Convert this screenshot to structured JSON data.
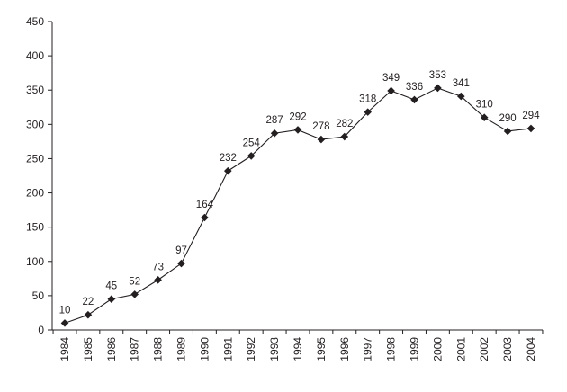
{
  "chart_data": {
    "type": "line",
    "title": "",
    "xlabel": "",
    "ylabel": "",
    "x": [
      "1984",
      "1985",
      "1986",
      "1987",
      "1988",
      "1989",
      "1990",
      "1991",
      "1992",
      "1993",
      "1994",
      "1995",
      "1996",
      "1997",
      "1998",
      "1999",
      "2000",
      "2001",
      "2002",
      "2003",
      "2004"
    ],
    "series": [
      {
        "values": [
          10,
          22,
          45,
          52,
          73,
          97,
          164,
          232,
          254,
          287,
          292,
          278,
          282,
          318,
          349,
          336,
          353,
          341,
          310,
          290,
          294
        ],
        "marker": "diamond",
        "color": "#231f20"
      }
    ],
    "ylim": [
      0,
      450
    ],
    "yticks": [
      0,
      50,
      100,
      150,
      200,
      250,
      300,
      350,
      400,
      450
    ],
    "grid": false,
    "legend": "none",
    "data_labels": true
  }
}
